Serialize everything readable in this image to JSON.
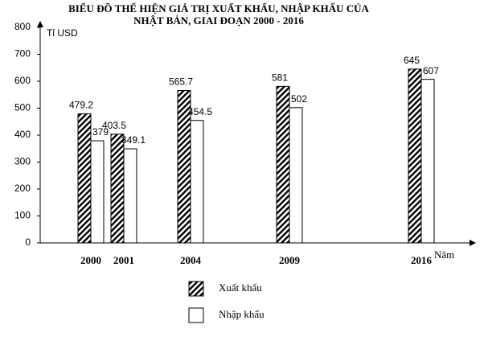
{
  "chart_data": {
    "type": "bar",
    "title": [
      "BIỂU ĐỒ THỂ HIỆN GIÁ TRỊ XUẤT KHẨU, NHẬP KHẨU CỦA",
      "NHẬT BẢN, GIAI ĐOẠN 2000 - 2016"
    ],
    "y_label": "Tỉ USD",
    "x_label": "Năm",
    "categories": [
      "2000",
      "2001",
      "2004",
      "2009",
      "2016"
    ],
    "series": [
      {
        "name": "Xuất khẩu",
        "color": "#000000",
        "hatch": true,
        "values": [
          479.2,
          403.5,
          565.7,
          581,
          645
        ]
      },
      {
        "name": "Nhập khẩu",
        "color": "#ffffff",
        "hatch": false,
        "values": [
          379,
          349.1,
          454.5,
          502,
          607
        ]
      }
    ],
    "ylim": [
      0,
      800
    ],
    "yticks": [
      0,
      100,
      200,
      300,
      400,
      500,
      600,
      700,
      800
    ]
  }
}
